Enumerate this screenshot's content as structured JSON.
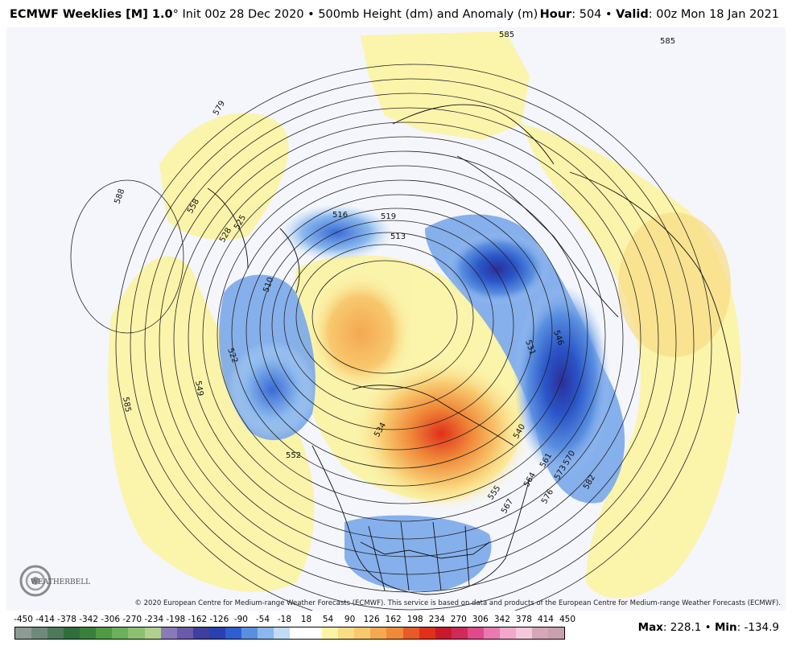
{
  "header": {
    "product": "ECMWF Weeklies [M] 1.0",
    "degree": "°",
    "init": " Init 00z 28 Dec 2020 • 500mb Height (dm) and Anomaly (m)",
    "hour_label": "Hour",
    "hour_value": ": 504 • ",
    "valid_label": "Valid",
    "valid_value": ": 00z Mon 18 Jan 2021"
  },
  "map": {
    "projection": "polar stereographic, North Pole centered",
    "contour_labels": [
      "585",
      "585",
      "588",
      "579",
      "558",
      "528",
      "525",
      "516",
      "519",
      "513",
      "510",
      "522",
      "549",
      "585",
      "552",
      "534",
      "531",
      "546",
      "540",
      "561",
      "564",
      "573",
      "570",
      "576",
      "582",
      "567",
      "555"
    ],
    "colors": {
      "ocean": "#f4f6fb",
      "positive_light": "#fbf3a6",
      "positive_mid": "#f8c86e",
      "positive_strong": "#f08a3a",
      "positive_max": "#e0301a",
      "negative_light": "#a8c8f2",
      "negative_mid": "#5a8fe0",
      "negative_strong": "#2a55c8",
      "negative_max": "#2b2f9a"
    }
  },
  "copyright": "© 2020 European Centre for Medium-range Weather Forecasts (ECMWF). This service is based on data and products of the European Centre for Medium-range Weather Forecasts (ECMWF).",
  "logo": {
    "text": "WEATHERBELL"
  },
  "colorbar": {
    "ticks": [
      "-450",
      "-414",
      "-378",
      "-342",
      "-306",
      "-270",
      "-234",
      "-198",
      "-162",
      "-126",
      "-90",
      "-54",
      "-18",
      "18",
      "54",
      "90",
      "126",
      "162",
      "198",
      "234",
      "270",
      "306",
      "342",
      "378",
      "414",
      "450"
    ],
    "colors": [
      "#8c9c94",
      "#6f8a7c",
      "#4d7a5a",
      "#2f6e3c",
      "#3a7f3a",
      "#4f9a44",
      "#6bb05a",
      "#8cc070",
      "#b0d090",
      "#8a7ab8",
      "#6a5aa8",
      "#3f3f9e",
      "#2b3fb0",
      "#2e5fd0",
      "#5a8fe0",
      "#8ab8ee",
      "#c0dcf6",
      "#ffffff",
      "#ffffff",
      "#fbf3a6",
      "#f9dc84",
      "#f8c86e",
      "#f4a850",
      "#f08a3a",
      "#e85a28",
      "#e0301a",
      "#c81a2a",
      "#d02a5a",
      "#e04a8a",
      "#e87ab0",
      "#f0a8cc",
      "#f6c8de",
      "#d6a6b6",
      "#c9a0ae"
    ],
    "max_label": "Max",
    "max_value": ": 228.1 • ",
    "min_label": "Min",
    "min_value": ": -134.9"
  }
}
